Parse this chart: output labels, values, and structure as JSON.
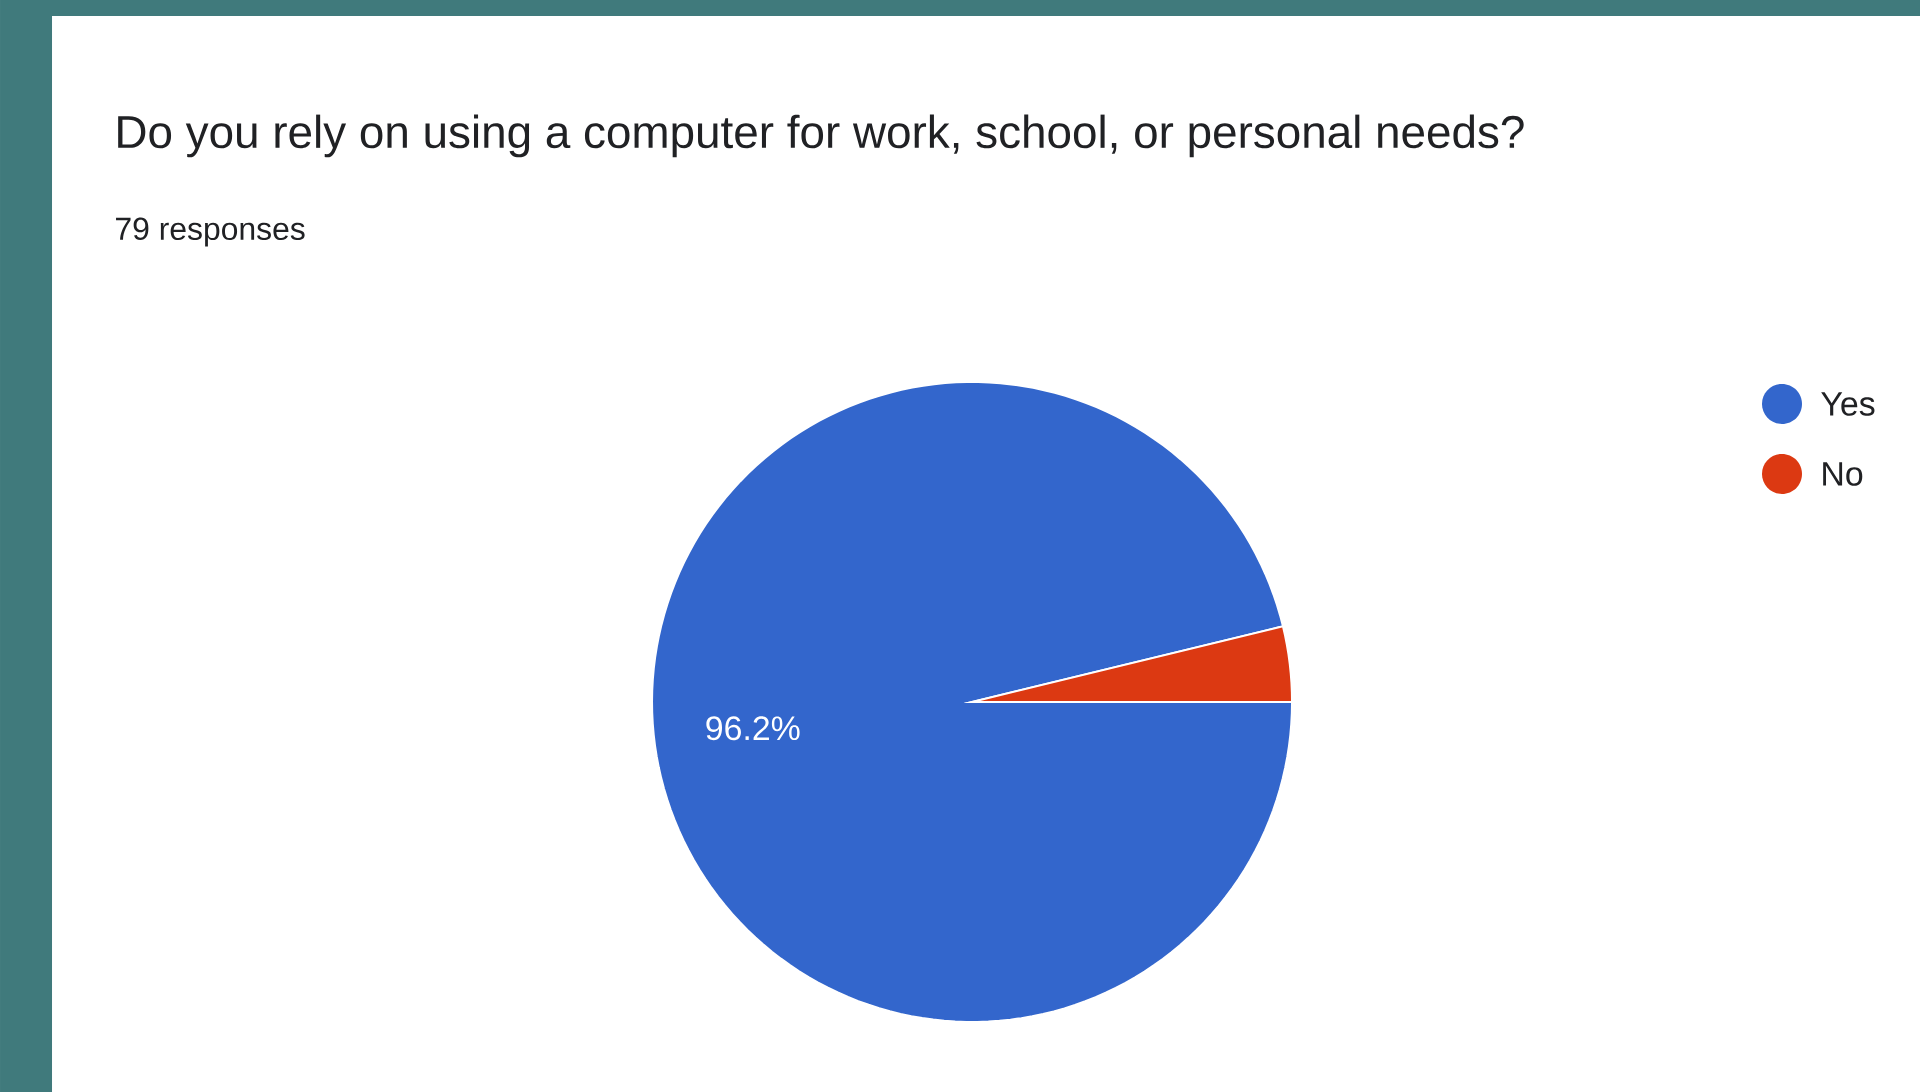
{
  "chart_data": {
    "type": "pie",
    "title": "Do you rely on using a computer for work, school, or personal needs?",
    "subtitle": "79 responses",
    "categories": [
      "Yes",
      "No"
    ],
    "values": [
      96.2,
      3.8
    ],
    "colors": [
      "#3366cc",
      "#dc3912"
    ],
    "value_labels": [
      "96.2%",
      null
    ],
    "legend": "top right"
  }
}
